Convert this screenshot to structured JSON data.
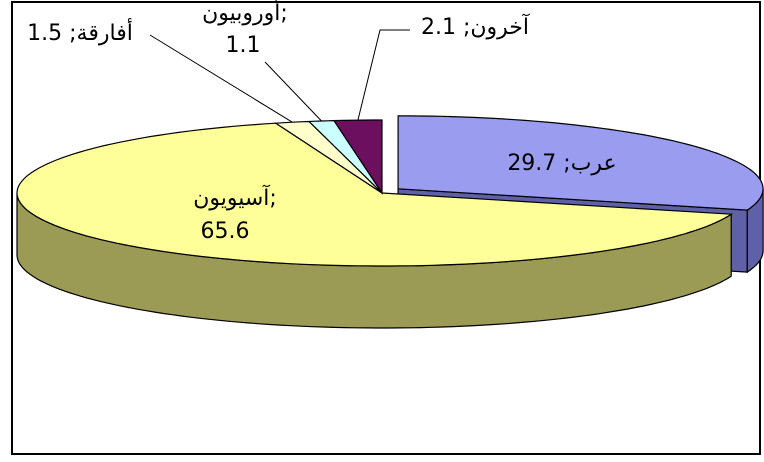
{
  "chart_data": {
    "type": "pie",
    "style": "3d-exploded",
    "slices": [
      {
        "label": "عرب",
        "value": 29.7,
        "color": "#9a9cf0",
        "side_color": "#5f61a8",
        "text": "عرب; 29.7"
      },
      {
        "label": "آسيويون",
        "value": 65.6,
        "color": "#ffff99",
        "side_color": "#9b9b55",
        "text_line1": "آسيويون;",
        "text_line2": "65.6"
      },
      {
        "label": "أفارقة",
        "value": 1.5,
        "color": "#ffffcc",
        "side_color": "#a0a070",
        "text": "أفارقة; 1.5"
      },
      {
        "label": "أوروبيون",
        "value": 1.1,
        "color": "#ccffff",
        "side_color": "#7fa8a8",
        "text_line1": "أوروبيون;",
        "text_line2": "1.1"
      },
      {
        "label": "آخرون",
        "value": 2.1,
        "color": "#6b0f5e",
        "side_color": "#40083a",
        "text": "آخرون; 2.1"
      }
    ],
    "legend": "none",
    "grid": false
  }
}
